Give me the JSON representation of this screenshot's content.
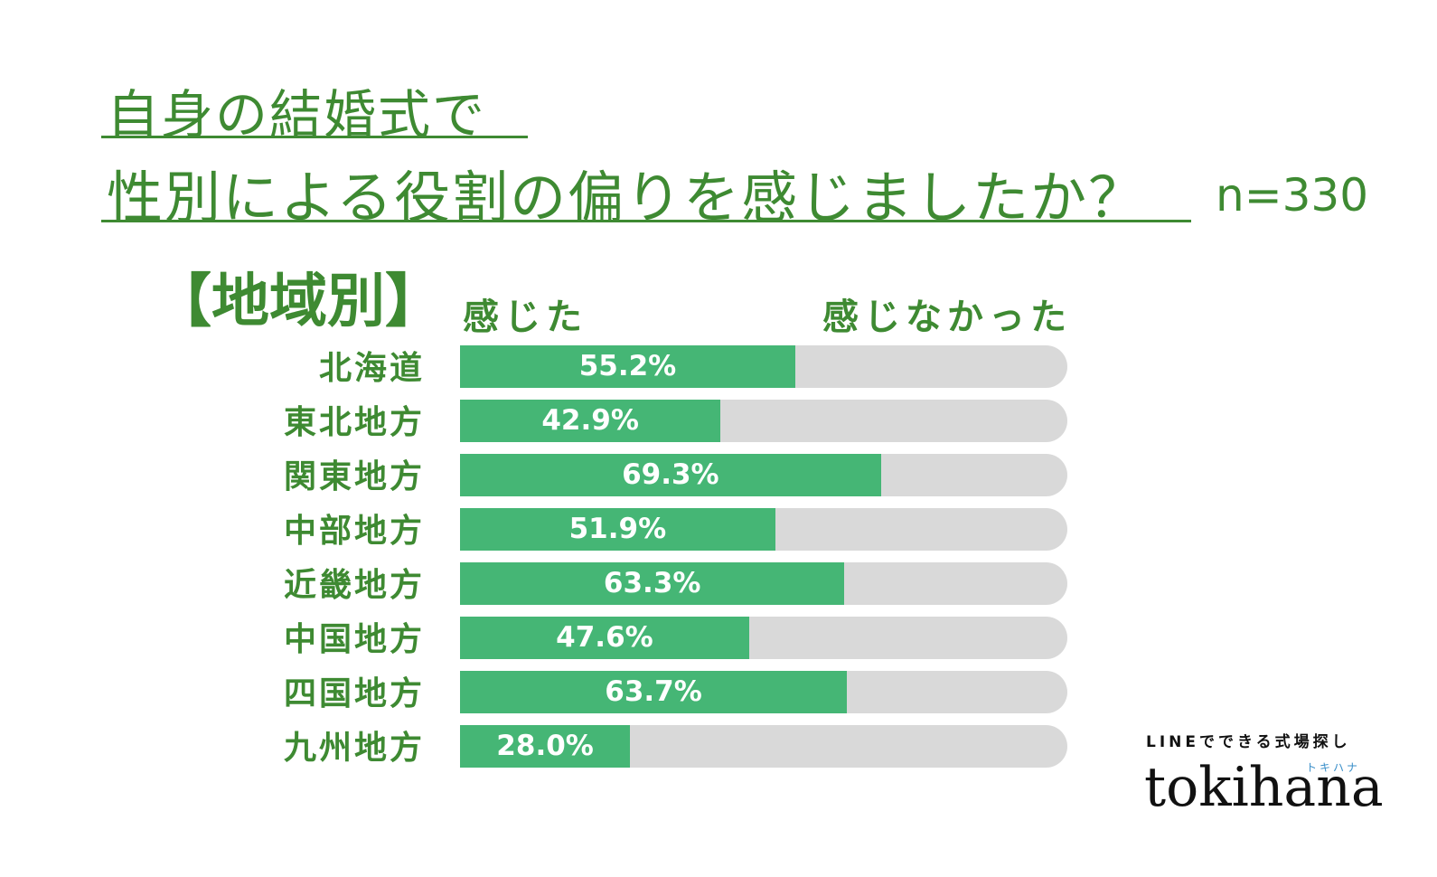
{
  "header": {
    "title_line1": "自身の結婚式で",
    "title_line2": "性別による役割の偏りを感じましたか？",
    "sample_size": "n=330",
    "section_label": "【地域別】"
  },
  "legend": {
    "felt": "感じた",
    "not_felt": "感じなかった"
  },
  "chart_data": {
    "type": "bar",
    "orientation": "horizontal",
    "stacked": true,
    "categories": [
      "北海道",
      "東北地方",
      "関東地方",
      "中部地方",
      "近畿地方",
      "中国地方",
      "四国地方",
      "九州地方"
    ],
    "series": [
      {
        "name": "感じた",
        "values": [
          55.2,
          42.9,
          69.3,
          51.9,
          63.3,
          47.6,
          63.7,
          28.0
        ],
        "color": "#45b675"
      },
      {
        "name": "感じなかった",
        "values": [
          44.8,
          57.1,
          30.7,
          48.1,
          36.7,
          52.4,
          36.3,
          72.0
        ],
        "color": "#d9d9d9"
      }
    ],
    "value_labels": [
      "55.2%",
      "42.9%",
      "69.3%",
      "51.9%",
      "63.3%",
      "47.6%",
      "63.7%",
      "28.0%"
    ],
    "xlim": [
      0,
      100
    ]
  },
  "brand": {
    "tagline": "LINEでできる式場探し",
    "kana": "トキハナ",
    "logo": "tokihana"
  },
  "colors": {
    "title": "#3e8a32",
    "felt": "#45b675",
    "not_felt": "#d9d9d9",
    "value_text": "#ffffff"
  }
}
